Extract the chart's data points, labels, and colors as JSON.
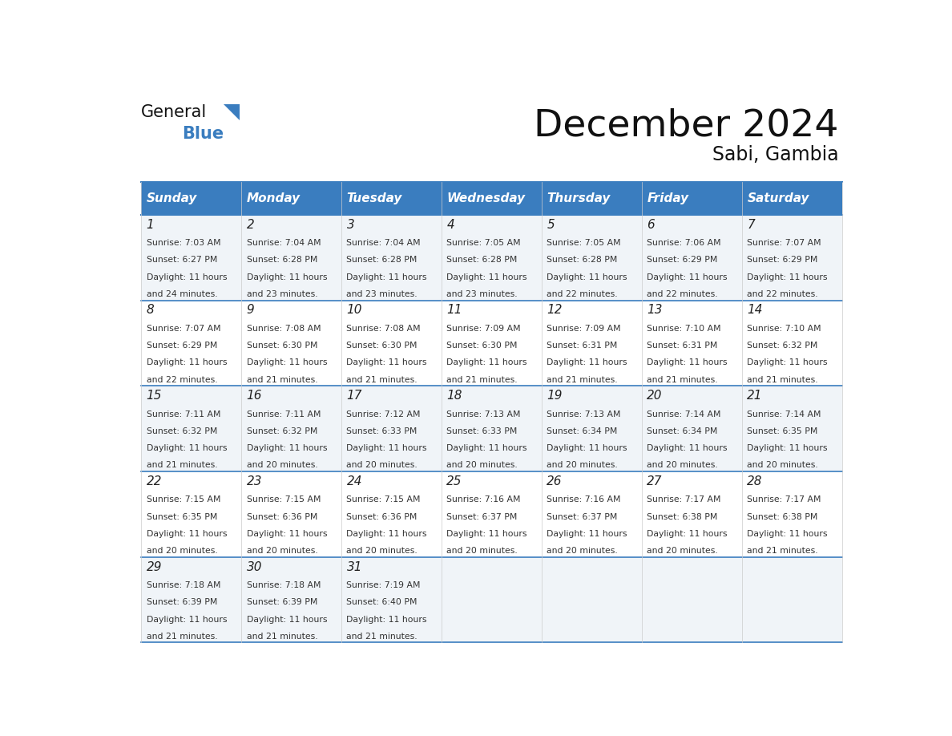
{
  "title": "December 2024",
  "subtitle": "Sabi, Gambia",
  "header_color": "#3a7dbf",
  "header_text_color": "#ffffff",
  "border_color": "#3a7dbf",
  "row_colors": [
    "#f0f4f8",
    "#ffffff",
    "#f0f4f8",
    "#ffffff",
    "#f0f4f8"
  ],
  "days_of_week": [
    "Sunday",
    "Monday",
    "Tuesday",
    "Wednesday",
    "Thursday",
    "Friday",
    "Saturday"
  ],
  "weeks": [
    [
      {
        "day": 1,
        "sunrise": "7:03 AM",
        "sunset": "6:27 PM",
        "daylight": "11 hours and 24 minutes."
      },
      {
        "day": 2,
        "sunrise": "7:04 AM",
        "sunset": "6:28 PM",
        "daylight": "11 hours and 23 minutes."
      },
      {
        "day": 3,
        "sunrise": "7:04 AM",
        "sunset": "6:28 PM",
        "daylight": "11 hours and 23 minutes."
      },
      {
        "day": 4,
        "sunrise": "7:05 AM",
        "sunset": "6:28 PM",
        "daylight": "11 hours and 23 minutes."
      },
      {
        "day": 5,
        "sunrise": "7:05 AM",
        "sunset": "6:28 PM",
        "daylight": "11 hours and 22 minutes."
      },
      {
        "day": 6,
        "sunrise": "7:06 AM",
        "sunset": "6:29 PM",
        "daylight": "11 hours and 22 minutes."
      },
      {
        "day": 7,
        "sunrise": "7:07 AM",
        "sunset": "6:29 PM",
        "daylight": "11 hours and 22 minutes."
      }
    ],
    [
      {
        "day": 8,
        "sunrise": "7:07 AM",
        "sunset": "6:29 PM",
        "daylight": "11 hours and 22 minutes."
      },
      {
        "day": 9,
        "sunrise": "7:08 AM",
        "sunset": "6:30 PM",
        "daylight": "11 hours and 21 minutes."
      },
      {
        "day": 10,
        "sunrise": "7:08 AM",
        "sunset": "6:30 PM",
        "daylight": "11 hours and 21 minutes."
      },
      {
        "day": 11,
        "sunrise": "7:09 AM",
        "sunset": "6:30 PM",
        "daylight": "11 hours and 21 minutes."
      },
      {
        "day": 12,
        "sunrise": "7:09 AM",
        "sunset": "6:31 PM",
        "daylight": "11 hours and 21 minutes."
      },
      {
        "day": 13,
        "sunrise": "7:10 AM",
        "sunset": "6:31 PM",
        "daylight": "11 hours and 21 minutes."
      },
      {
        "day": 14,
        "sunrise": "7:10 AM",
        "sunset": "6:32 PM",
        "daylight": "11 hours and 21 minutes."
      }
    ],
    [
      {
        "day": 15,
        "sunrise": "7:11 AM",
        "sunset": "6:32 PM",
        "daylight": "11 hours and 21 minutes."
      },
      {
        "day": 16,
        "sunrise": "7:11 AM",
        "sunset": "6:32 PM",
        "daylight": "11 hours and 20 minutes."
      },
      {
        "day": 17,
        "sunrise": "7:12 AM",
        "sunset": "6:33 PM",
        "daylight": "11 hours and 20 minutes."
      },
      {
        "day": 18,
        "sunrise": "7:13 AM",
        "sunset": "6:33 PM",
        "daylight": "11 hours and 20 minutes."
      },
      {
        "day": 19,
        "sunrise": "7:13 AM",
        "sunset": "6:34 PM",
        "daylight": "11 hours and 20 minutes."
      },
      {
        "day": 20,
        "sunrise": "7:14 AM",
        "sunset": "6:34 PM",
        "daylight": "11 hours and 20 minutes."
      },
      {
        "day": 21,
        "sunrise": "7:14 AM",
        "sunset": "6:35 PM",
        "daylight": "11 hours and 20 minutes."
      }
    ],
    [
      {
        "day": 22,
        "sunrise": "7:15 AM",
        "sunset": "6:35 PM",
        "daylight": "11 hours and 20 minutes."
      },
      {
        "day": 23,
        "sunrise": "7:15 AM",
        "sunset": "6:36 PM",
        "daylight": "11 hours and 20 minutes."
      },
      {
        "day": 24,
        "sunrise": "7:15 AM",
        "sunset": "6:36 PM",
        "daylight": "11 hours and 20 minutes."
      },
      {
        "day": 25,
        "sunrise": "7:16 AM",
        "sunset": "6:37 PM",
        "daylight": "11 hours and 20 minutes."
      },
      {
        "day": 26,
        "sunrise": "7:16 AM",
        "sunset": "6:37 PM",
        "daylight": "11 hours and 20 minutes."
      },
      {
        "day": 27,
        "sunrise": "7:17 AM",
        "sunset": "6:38 PM",
        "daylight": "11 hours and 20 minutes."
      },
      {
        "day": 28,
        "sunrise": "7:17 AM",
        "sunset": "6:38 PM",
        "daylight": "11 hours and 21 minutes."
      }
    ],
    [
      {
        "day": 29,
        "sunrise": "7:18 AM",
        "sunset": "6:39 PM",
        "daylight": "11 hours and 21 minutes."
      },
      {
        "day": 30,
        "sunrise": "7:18 AM",
        "sunset": "6:39 PM",
        "daylight": "11 hours and 21 minutes."
      },
      {
        "day": 31,
        "sunrise": "7:19 AM",
        "sunset": "6:40 PM",
        "daylight": "11 hours and 21 minutes."
      },
      null,
      null,
      null,
      null
    ]
  ]
}
